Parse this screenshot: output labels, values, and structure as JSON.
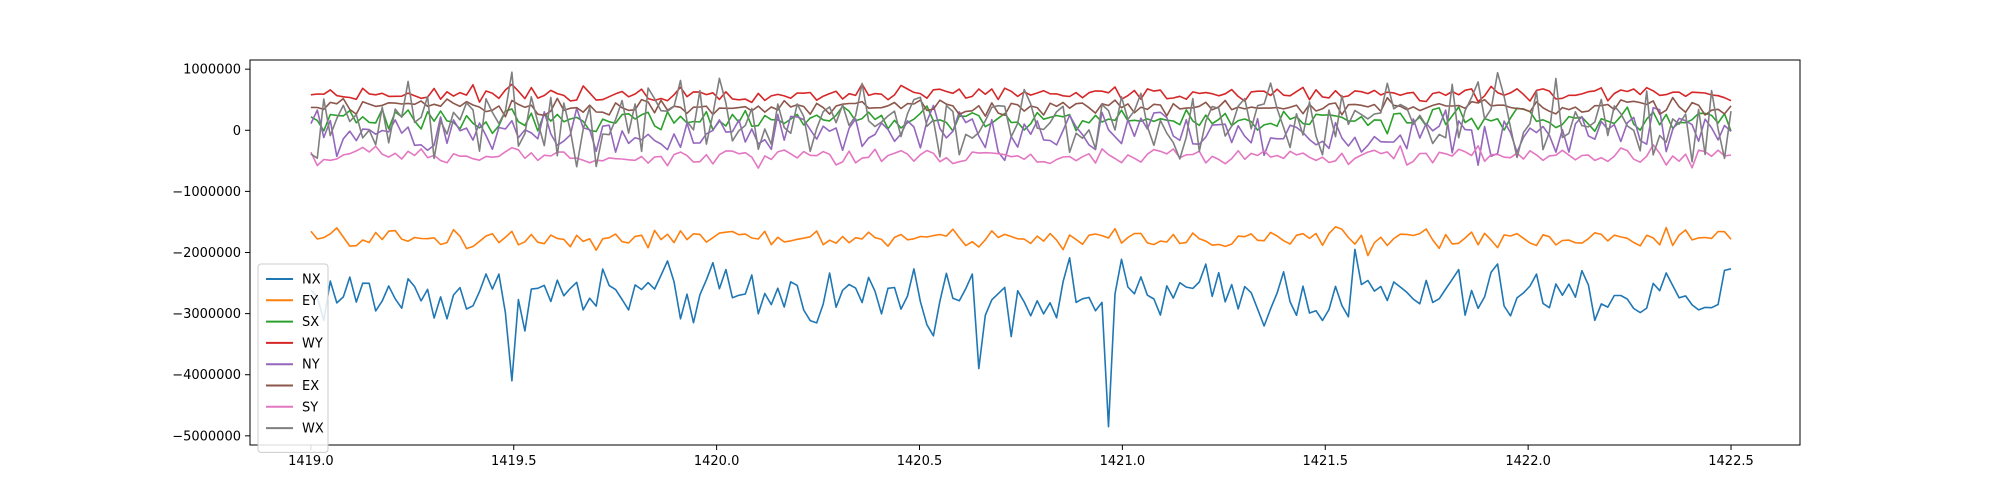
{
  "chart_data": {
    "type": "line",
    "title": "",
    "xlabel": "",
    "ylabel": "",
    "xlim": [
      1418.85,
      1422.67
    ],
    "ylim": [
      -5150000,
      1150000
    ],
    "grid": false,
    "legend_position": "lower-left",
    "x_ticks": [
      1419.0,
      1419.5,
      1420.0,
      1420.5,
      1421.0,
      1421.5,
      1422.0,
      1422.5
    ],
    "x_tick_labels": [
      "1419.0",
      "1419.5",
      "1420.0",
      "1420.5",
      "1421.0",
      "1421.5",
      "1422.0",
      "1422.5"
    ],
    "y_ticks": [
      1000000,
      0,
      -1000000,
      -2000000,
      -3000000,
      -4000000,
      -5000000
    ],
    "y_tick_labels": [
      "1000000",
      "0",
      "−1000000",
      "−2000000",
      "−3000000",
      "−4000000",
      "−5000000"
    ],
    "x_start": 1419.0,
    "x_end": 1422.5,
    "num_points": 220,
    "series": [
      {
        "name": "NX",
        "color": "#1f77b4",
        "center": -2700000,
        "noise": 250000,
        "spikes": [
          [
            1419.5,
            -4100000
          ],
          [
            1420.65,
            -3900000
          ],
          [
            1420.96,
            -4850000
          ],
          [
            1421.05,
            -2400000
          ],
          [
            1421.57,
            -1950000
          ]
        ]
      },
      {
        "name": "EY",
        "color": "#ff7f0e",
        "center": -1770000,
        "noise": 80000,
        "spikes": [
          [
            1421.53,
            -1580000
          ],
          [
            1421.6,
            -2050000
          ]
        ]
      },
      {
        "name": "SX",
        "color": "#2ca02c",
        "center": 170000,
        "noise": 90000,
        "spikes": []
      },
      {
        "name": "WY",
        "color": "#d62728",
        "center": 600000,
        "noise": 60000,
        "spikes": []
      },
      {
        "name": "NY",
        "color": "#9467bd",
        "center": -50000,
        "noise": 200000,
        "spikes": []
      },
      {
        "name": "EX",
        "color": "#8c564b",
        "center": 380000,
        "noise": 70000,
        "spikes": []
      },
      {
        "name": "SY",
        "color": "#e377c2",
        "center": -430000,
        "noise": 70000,
        "spikes": []
      },
      {
        "name": "WX",
        "color": "#7f7f7f",
        "center": 170000,
        "noise": 300000,
        "spikes": [
          [
            1419.24,
            800000
          ],
          [
            1420.0,
            850000
          ],
          [
            1420.6,
            -400000
          ],
          [
            1422.46,
            650000
          ]
        ]
      }
    ]
  }
}
